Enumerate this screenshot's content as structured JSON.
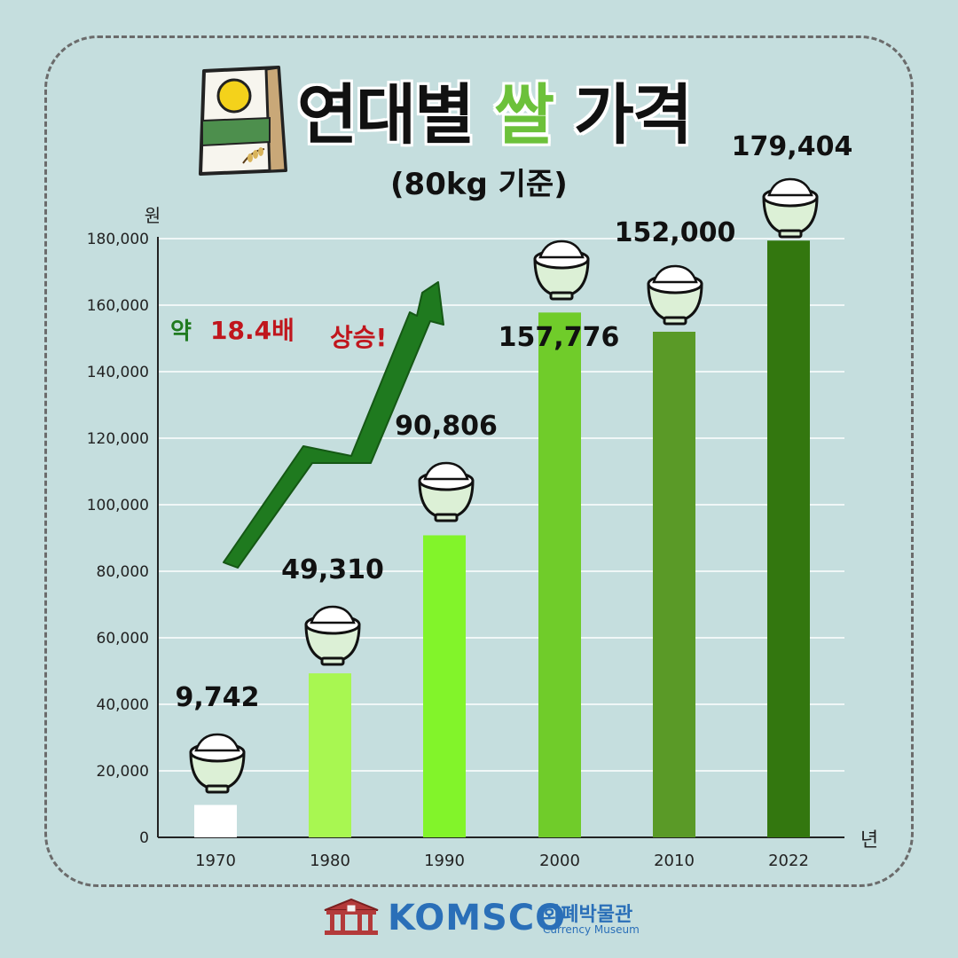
{
  "header": {
    "title_part1": "연대별 ",
    "title_highlight": "쌀",
    "title_part2": " 가격",
    "subtitle": "(80kg 기준)"
  },
  "annotation": {
    "prefix": "약 ",
    "ratio": "18.4배",
    "suffix": "상승!"
  },
  "chart_data": {
    "type": "bar",
    "ylabel": "원",
    "xlabel": "년",
    "ylim": [
      0,
      180000
    ],
    "yticks": [
      "0",
      "20,000",
      "40,000",
      "60,000",
      "80,000",
      "100,000",
      "120,000",
      "140,000",
      "160,000",
      "180,000"
    ],
    "categories": [
      "1970",
      "1980",
      "1990",
      "2000",
      "2010",
      "2022"
    ],
    "values": [
      9742,
      49310,
      90806,
      157776,
      152000,
      179404
    ],
    "value_labels": [
      "9,742",
      "49,310",
      "90,806",
      "157,776",
      "152,000",
      "179,404"
    ],
    "colors": [
      "#ffffff",
      "#a8f751",
      "#82f42a",
      "#70cc2a",
      "#5a9a27",
      "#33770f"
    ],
    "grid": true,
    "legend": "none"
  },
  "footer": {
    "logo_main": "KOMSCO",
    "logo_ko": "화폐박물관",
    "logo_en": "Currency Museum"
  },
  "colors": {
    "background": "#c5dede",
    "title_highlight": "#6cc13a",
    "arrow": "#1f7a1f",
    "annotation_red": "#c0161d",
    "logo_blue": "#2a6fb8"
  }
}
